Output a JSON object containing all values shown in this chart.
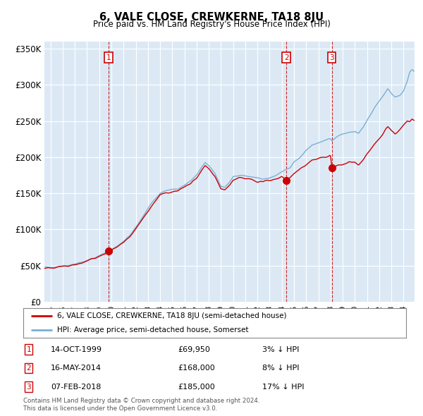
{
  "title": "6, VALE CLOSE, CREWKERNE, TA18 8JU",
  "subtitle": "Price paid vs. HM Land Registry's House Price Index (HPI)",
  "transactions": [
    {
      "num": 1,
      "date": "14-OCT-1999",
      "price": 69950,
      "pct": "3%",
      "direction": "↓",
      "year_x": 1999.79
    },
    {
      "num": 2,
      "date": "16-MAY-2014",
      "price": 168000,
      "pct": "8%",
      "direction": "↓",
      "year_x": 2014.37
    },
    {
      "num": 3,
      "date": "07-FEB-2018",
      "price": 185000,
      "pct": "17%",
      "direction": "↓",
      "year_x": 2018.1
    }
  ],
  "legend_line1": "6, VALE CLOSE, CREWKERNE, TA18 8JU (semi-detached house)",
  "legend_line2": "HPI: Average price, semi-detached house, Somerset",
  "footer1": "Contains HM Land Registry data © Crown copyright and database right 2024.",
  "footer2": "This data is licensed under the Open Government Licence v3.0.",
  "hpi_color": "#7bafd4",
  "price_color": "#cc0000",
  "background_color": "#dce9f5",
  "plot_bg_color": "#dce9f5",
  "fig_bg_color": "#ffffff",
  "grid_color": "#ffffff",
  "ylim": [
    0,
    360000
  ],
  "yticks": [
    0,
    50000,
    100000,
    150000,
    200000,
    250000,
    300000,
    350000
  ],
  "ytick_labels": [
    "£0",
    "£50K",
    "£100K",
    "£150K",
    "£200K",
    "£250K",
    "£300K",
    "£350K"
  ],
  "xlim_start": 1994.5,
  "xlim_end": 2024.9
}
